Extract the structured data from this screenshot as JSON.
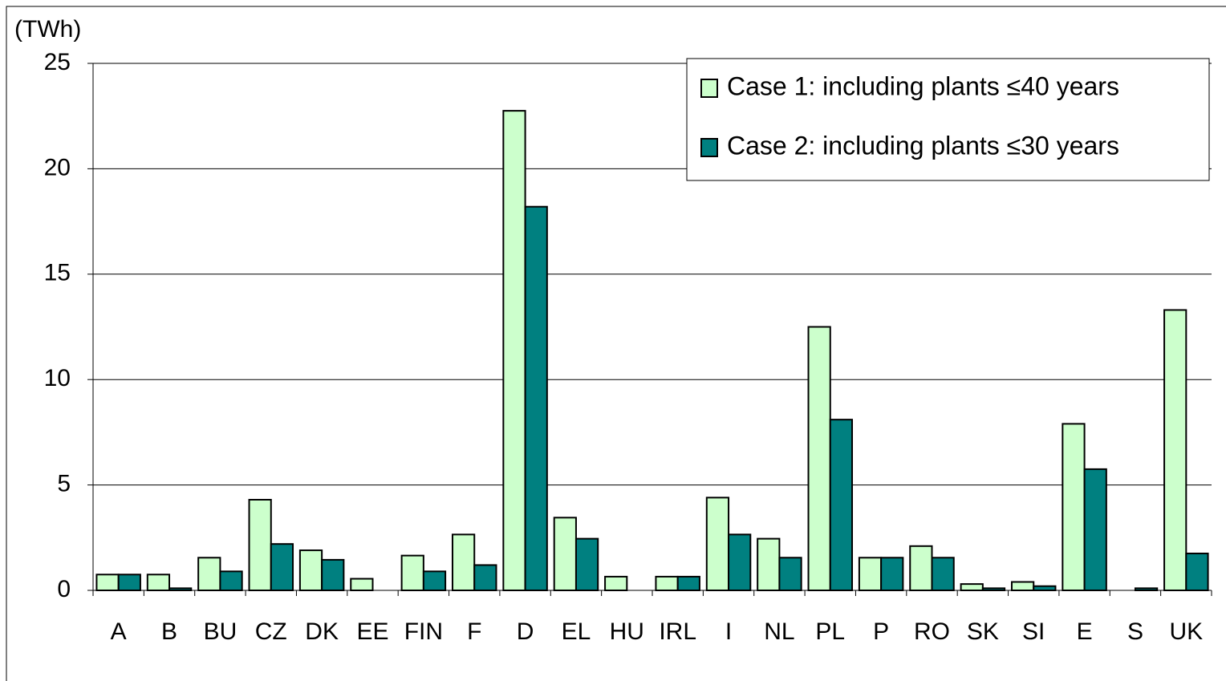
{
  "chart_data": {
    "type": "bar",
    "y_label": "(TWh)",
    "categories": [
      "A",
      "B",
      "BU",
      "CZ",
      "DK",
      "EE",
      "FIN",
      "F",
      "D",
      "EL",
      "HU",
      "IRL",
      "I",
      "NL",
      "PL",
      "P",
      "RO",
      "SK",
      "SI",
      "E",
      "S",
      "UK"
    ],
    "series": [
      {
        "name": "Case 1: including plants ≤40 years",
        "color": "#ccffcc",
        "values": [
          0.75,
          0.75,
          1.55,
          4.3,
          1.9,
          0.55,
          1.65,
          2.65,
          22.75,
          3.45,
          0.65,
          0.65,
          4.4,
          2.45,
          12.5,
          1.55,
          2.1,
          0.3,
          0.4,
          7.9,
          0,
          13.3
        ]
      },
      {
        "name": "Case 2: including plants ≤30 years",
        "color": "#008080",
        "values": [
          0.75,
          0.1,
          0.9,
          2.2,
          1.45,
          0,
          0.9,
          1.2,
          18.2,
          2.45,
          0,
          0.65,
          2.65,
          1.55,
          8.1,
          1.55,
          1.55,
          0.1,
          0.2,
          5.75,
          0.1,
          1.75
        ]
      }
    ],
    "ylim": [
      0,
      25
    ],
    "yticks": [
      0,
      5,
      10,
      15,
      20,
      25
    ],
    "grid": true,
    "legend": "top-right"
  }
}
